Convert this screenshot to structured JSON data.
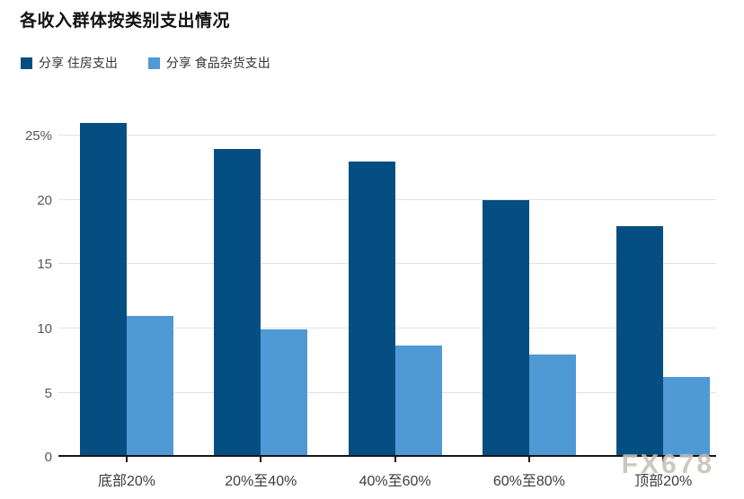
{
  "chart_data": {
    "type": "bar",
    "title": "各收入群体按类别支出情况",
    "categories": [
      "底部20%",
      "20%至40%",
      "40%至60%",
      "60%至80%",
      "顶部20%"
    ],
    "series": [
      {
        "name": "分享 住房支出",
        "color": "#054e82",
        "values": [
          26,
          24,
          23,
          20,
          18
        ]
      },
      {
        "name": "分享 食品杂货支出",
        "color": "#4f99d5",
        "values": [
          11,
          9.9,
          8.7,
          8,
          6.2
        ]
      }
    ],
    "xlabel": "",
    "ylabel": "",
    "y_ticks": [
      0,
      5,
      10,
      15,
      20,
      25
    ],
    "y_tick_labels": [
      "0",
      "5",
      "10",
      "15",
      "20",
      "25%"
    ],
    "ylim": [
      0,
      26.15
    ],
    "grid": true,
    "legend_position": "top-left"
  },
  "watermark": "FX678",
  "colors": {
    "background": "#ffffff",
    "gridline": "#e2e2e2",
    "axis_line": "#161616",
    "title_text": "#111111",
    "tick_text": "#565656",
    "category_text": "#3d3d3d",
    "watermark_text": "#c9c1b7"
  }
}
